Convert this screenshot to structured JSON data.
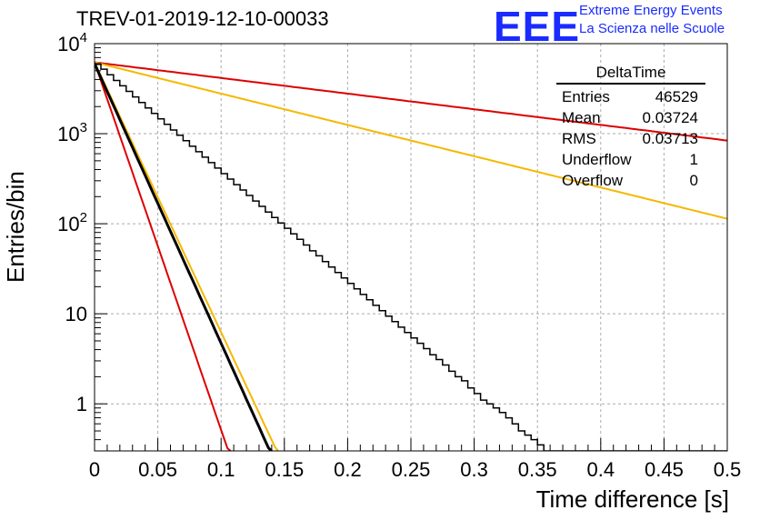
{
  "title": "TREV-01-2019-12-10-00033",
  "logo": {
    "mark": "EEE",
    "line1": "Extreme Energy Events",
    "line2": "La Scienza nelle Scuole"
  },
  "stats_box": {
    "title": "DeltaTime",
    "rows": [
      {
        "label": "Entries",
        "value": "46529"
      },
      {
        "label": "Mean",
        "value": "0.03724"
      },
      {
        "label": "RMS",
        "value": "0.03713"
      },
      {
        "label": "Underflow",
        "value": "1"
      },
      {
        "label": "Overflow",
        "value": "0"
      }
    ]
  },
  "chart_data": {
    "type": "line",
    "xlabel": "Time difference [s]",
    "ylabel": "Entries/bin",
    "xlim": [
      0,
      0.5
    ],
    "ylim": [
      0.3,
      10000
    ],
    "yscale": "log",
    "grid": true,
    "x_ticks": [
      "0",
      "0.05",
      "0.1",
      "0.15",
      "0.2",
      "0.25",
      "0.3",
      "0.35",
      "0.4",
      "0.45",
      "0.5"
    ],
    "y_ticks": [
      {
        "value": 1,
        "label": "1"
      },
      {
        "value": 10,
        "label": "10"
      },
      {
        "value": 100,
        "label": "10^2"
      },
      {
        "value": 1000,
        "label": "10^3"
      },
      {
        "value": 10000,
        "label": "10^4"
      }
    ],
    "histogram": {
      "bin_width": 0.005,
      "color": "#000000",
      "counts": [
        5900,
        5200,
        4500,
        3900,
        3400,
        2950,
        2560,
        2220,
        1930,
        1680,
        1460,
        1270,
        1100,
        960,
        835,
        725,
        630,
        548,
        477,
        415,
        360,
        313,
        272,
        237,
        206,
        179,
        156,
        135,
        117,
        102,
        89,
        77,
        67,
        58,
        50,
        44,
        38,
        33,
        28.7,
        25,
        21.7,
        18.9,
        16.4,
        14.3,
        12.4,
        10.8,
        9.4,
        8.2,
        7.1,
        6.2,
        5.4,
        4.7,
        4.1,
        3.5,
        3.1,
        2.7,
        2.3,
        2,
        1.8,
        1.5,
        1.3,
        1.1,
        1,
        0.9,
        0.8,
        0.7,
        0.6,
        0.5,
        0.45,
        0.4,
        0.35,
        0.3,
        0.3,
        0.3,
        0.3,
        0.3,
        0.3,
        0.3,
        0.3,
        0.3,
        0.3,
        0.3,
        0.3,
        0.3,
        0.3,
        0.3,
        0.3,
        0.3,
        0.3,
        0.3,
        0.3,
        0.3,
        0.3,
        0.3,
        0.3,
        0.3,
        0.3,
        0.3,
        0.3,
        0.3
      ]
    },
    "fit": {
      "color": "#000000",
      "y0": 6000,
      "slope_per_s": 71.5
    },
    "curves": [
      {
        "color": "#dd0000",
        "y0": 6200,
        "slope_per_s": 4.0
      },
      {
        "color": "#f5b800",
        "y0": 6200,
        "slope_per_s": 8.0
      },
      {
        "color": "#f5b800",
        "y0": 6200,
        "slope_per_s": 69.0
      },
      {
        "color": "#dd0000",
        "y0": 6200,
        "slope_per_s": 94.0
      }
    ]
  }
}
